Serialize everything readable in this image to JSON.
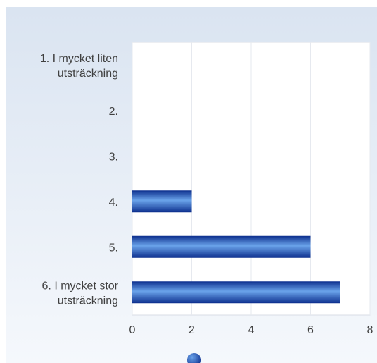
{
  "chart_data": {
    "type": "bar",
    "orientation": "horizontal",
    "categories": [
      [
        "1. I mycket liten",
        "utsträckning"
      ],
      [
        "2."
      ],
      [
        "3."
      ],
      [
        "4."
      ],
      [
        "5."
      ],
      [
        "6. I mycket stor",
        "utsträckning"
      ]
    ],
    "values": [
      0,
      0,
      0,
      2,
      6,
      7
    ],
    "xlim": [
      0,
      8
    ],
    "xticks": [
      "0",
      "2",
      "4",
      "6",
      "8"
    ],
    "grid": true,
    "legend": "bottom",
    "colors": {
      "background_top": "#dae4f1",
      "background_bottom": "#f5f8fc",
      "plot_area": "#ffffff",
      "bar_dark": "#0d2f8e",
      "bar_light": "#6aa3ea",
      "grid": "#e6e9ef",
      "axis_text": "#404040"
    }
  }
}
